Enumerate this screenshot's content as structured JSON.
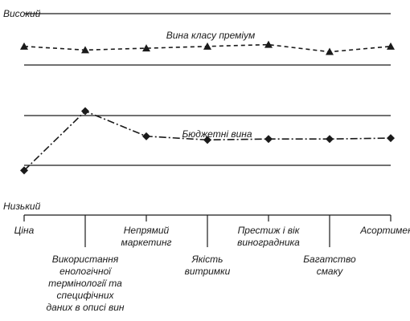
{
  "chart_data": {
    "type": "line",
    "ylabel_top": "Високий",
    "ylabel_bottom": "Низький",
    "categories": [
      [
        "Ціна"
      ],
      [
        "Використання",
        "енологічної",
        "термінології та",
        "специфічних",
        "даних в описі вин"
      ],
      [
        "Непрямий",
        "маркетинг"
      ],
      [
        "Якість",
        "витримки"
      ],
      [
        "Престиж і вік",
        "виноградника"
      ],
      [
        "Багатство",
        "смаку"
      ],
      [
        "Асортимент"
      ]
    ],
    "ylim": [
      0,
      10
    ],
    "series": [
      {
        "name": "Вина класу преміум",
        "marker": "triangle",
        "line_style": "dashed",
        "values": [
          8.4,
          8.2,
          8.3,
          8.4,
          8.5,
          8.1,
          8.4
        ]
      },
      {
        "name": "Бюджетні вина",
        "marker": "diamond",
        "line_style": "dash-dot",
        "values": [
          1.5,
          4.8,
          3.4,
          3.2,
          3.25,
          3.25,
          3.3
        ]
      }
    ]
  }
}
